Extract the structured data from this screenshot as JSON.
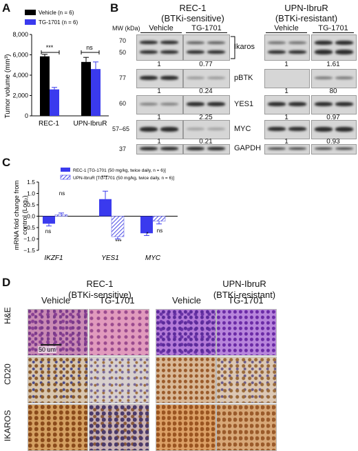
{
  "panel_letters": {
    "a": "A",
    "b": "B",
    "c": "C",
    "d": "D"
  },
  "colors": {
    "vehicle": "#000000",
    "tg": "#3a3aee",
    "hatch": "#6a6ae8"
  },
  "panelA": {
    "legend": [
      "Vehicle (n = 6)",
      "TG-1701 (n = 6)"
    ],
    "ylabel": "Tumor volume (mm³)",
    "yticks": [
      "0",
      "2,000",
      "4,000",
      "6,000",
      "8,000"
    ],
    "groups": [
      "REC-1",
      "UPN-IbruR"
    ],
    "sig": [
      "***",
      "ns"
    ]
  },
  "chart_data": [
    {
      "type": "bar",
      "categories": [
        "REC-1",
        "UPN-IbruR"
      ],
      "series": [
        {
          "name": "Vehicle (n = 6)",
          "values": [
            5850,
            5300
          ],
          "errors": [
            200,
            450
          ]
        },
        {
          "name": "TG-1701 (n = 6)",
          "values": [
            2600,
            4600
          ],
          "errors": [
            200,
            700
          ]
        }
      ],
      "ylabel": "Tumor volume (mm³)",
      "ylim": [
        0,
        8000
      ]
    },
    {
      "type": "bar",
      "categories": [
        "IKZF1",
        "YES1",
        "MYC"
      ],
      "series": [
        {
          "name": "REC-1 [TG-1701 (50 mg/kg, twice daily, n = 6)]",
          "values": [
            -0.33,
            0.75,
            -0.75
          ],
          "errors": [
            0.1,
            0.35,
            0.1
          ]
        },
        {
          "name": "UPN-IbruR [TG-1701 (50 mg/kg, twice daily, n = 6)]",
          "values": [
            0.07,
            -0.9,
            -0.22
          ],
          "errors": [
            0.07,
            0.1,
            0.12
          ]
        }
      ],
      "ylabel": "mRNA fold change from control (Log₂)",
      "ylim": [
        -1.5,
        1.5
      ]
    }
  ],
  "panelB": {
    "left_title1": "REC-1",
    "left_title2": "(BTKi-sensitive)",
    "right_title1": "UPN-IbruR",
    "right_title2": "(BTKi-resistant)",
    "mw_label": "MW (kDa)",
    "vehicle": "Vehicle",
    "tg": "TG-1701",
    "rows": [
      {
        "mw1": "70",
        "mw2": "50",
        "protein": "Ikaros",
        "left": [
          "1",
          "0.77"
        ],
        "right": [
          "1",
          "1.61"
        ]
      },
      {
        "mw1": "77",
        "protein": "pBTK",
        "left": [
          "1",
          "0.24"
        ],
        "right": [
          "1",
          "80"
        ]
      },
      {
        "mw1": "60",
        "protein": "YES1",
        "left": [
          "1",
          "2.25"
        ],
        "right": [
          "1",
          "0.97"
        ]
      },
      {
        "mw1": "57–65",
        "protein": "MYC",
        "left": [
          "1",
          "0.21"
        ],
        "right": [
          "1",
          "0.93"
        ]
      },
      {
        "mw1": "37",
        "protein": "GAPDH"
      }
    ]
  },
  "panelC": {
    "legend": [
      "REC-1 [TG-1701 (50 mg/kg, twice daily, n = 6)]",
      "UPN-IbruR [TG-1701 (50 mg/kg, twice daily, n = 6)]"
    ],
    "ylabel1": "mRNA fold change from",
    "ylabel2": "control (Log₂)",
    "yticks": [
      "1.5",
      "1.0",
      "0.5",
      "0.0",
      "−0.5",
      "−1.0",
      "−1.5"
    ],
    "genes": [
      "IKZF1",
      "YES1",
      "MYC"
    ],
    "sig": {
      "ikzf1_rec": "ns",
      "ikzf1_upn": "ns",
      "yes1_rec": "***",
      "yes1_upn": "***",
      "myc_rec": "*",
      "myc_upn": "ns"
    }
  },
  "panelD": {
    "left_title1": "REC-1",
    "left_title2": "(BTKi-sensitive)",
    "right_title1": "UPN-IbruR",
    "right_title2": "(BTKi-resistant)",
    "vehicle": "Vehicle",
    "tg": "TG-1701",
    "rows": [
      "H&E",
      "CD20",
      "IKAROS"
    ],
    "scalebar": "50 um"
  }
}
